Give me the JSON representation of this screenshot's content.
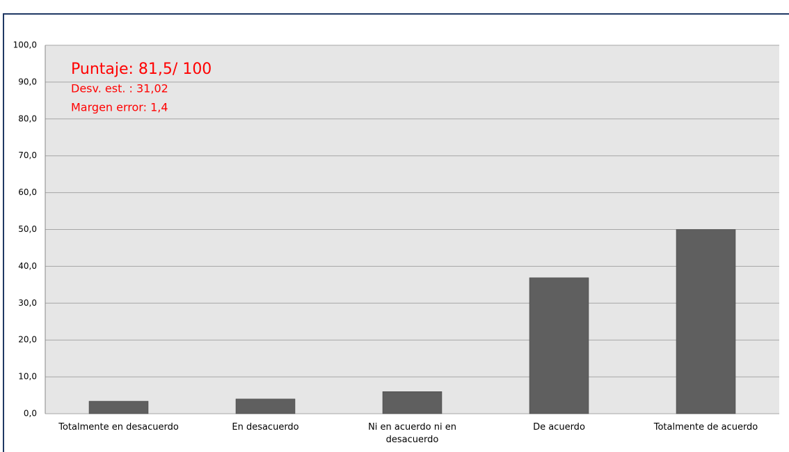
{
  "chart_data": {
    "type": "bar",
    "annotations": [
      "Puntaje: 81,5/ 100",
      "Desv. est. : 31,02",
      "Margen error: 1,4"
    ],
    "annotation_color": "#ff0000",
    "categories": [
      "Totalmente en desacuerdo",
      "En desacuerdo",
      "Ni en acuerdo ni en desacuerdo",
      "De acuerdo",
      "Totalmente de acuerdo"
    ],
    "values": [
      3.4,
      4.0,
      6.0,
      36.9,
      50.0
    ],
    "color": "#5f5f5f",
    "ylim": [
      0,
      100
    ],
    "yticks": [
      {
        "value": 0,
        "label": "0,0"
      },
      {
        "value": 10,
        "label": "10,0"
      },
      {
        "value": 20,
        "label": "20,0"
      },
      {
        "value": 30,
        "label": "30,0"
      },
      {
        "value": 40,
        "label": "40,0"
      },
      {
        "value": 50,
        "label": "50,0"
      },
      {
        "value": 60,
        "label": "60,0"
      },
      {
        "value": 70,
        "label": "70,0"
      },
      {
        "value": 80,
        "label": "80,0"
      },
      {
        "value": 90,
        "label": "90,0"
      },
      {
        "value": 100,
        "label": "100,0"
      }
    ],
    "grid": true
  }
}
